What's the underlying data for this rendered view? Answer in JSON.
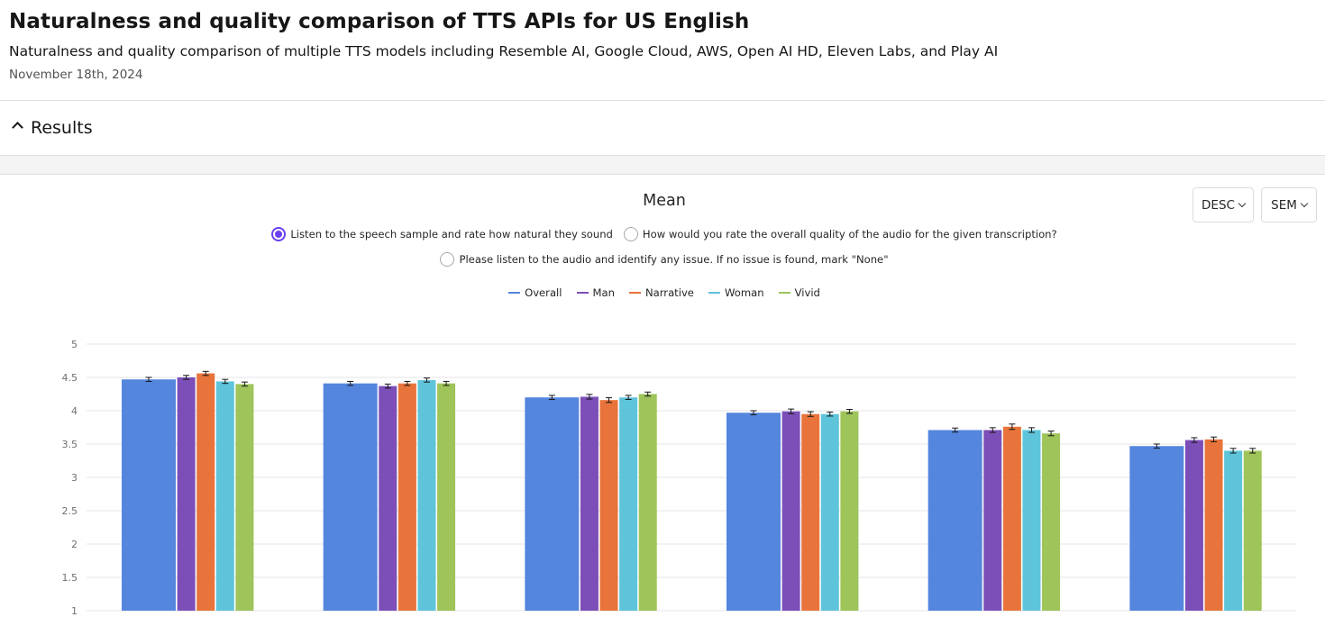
{
  "header": {
    "title": "Naturalness and quality comparison of TTS APIs for US English",
    "subtitle": "Naturalness and quality comparison of multiple TTS models including Resemble AI, Google Cloud, AWS, Open AI HD, Eleven Labs, and Play AI",
    "date": "November 18th, 2024"
  },
  "section": {
    "title": "Results",
    "icon": "chevron-up-icon"
  },
  "chart_header": {
    "title": "Mean"
  },
  "controls": {
    "sort": "DESC",
    "error": "SEM"
  },
  "questions": [
    {
      "label": "Listen to the speech sample and rate how natural they sound",
      "selected": true
    },
    {
      "label": "How would you rate the overall quality of the audio for the given transcription?",
      "selected": false
    },
    {
      "label": "Please listen to the audio and identify any issue. If no issue is found, mark \"None\"",
      "selected": false
    }
  ],
  "colors": {
    "Overall": "#5586de",
    "Man": "#7c4fb8",
    "Narrative": "#e8743b",
    "Woman": "#5ec4da",
    "Vivid": "#9ec45a"
  },
  "chart_data": {
    "type": "bar",
    "title": "Mean",
    "ylim": [
      1,
      5
    ],
    "yticks": [
      "1",
      "1.5",
      "2",
      "2.5",
      "3",
      "3.5",
      "4",
      "4.5",
      "5"
    ],
    "grid": true,
    "legend_position": "top-center",
    "error_bars": "SEM",
    "groups": 6,
    "series": [
      {
        "name": "Overall",
        "values": [
          4.47,
          4.41,
          4.2,
          3.97,
          3.71,
          3.47
        ],
        "errors": [
          0.01,
          0.01,
          0.01,
          0.01,
          0.01,
          0.01
        ]
      },
      {
        "name": "Man",
        "values": [
          4.5,
          4.37,
          4.21,
          3.99,
          3.71,
          3.56
        ],
        "errors": [
          0.01,
          0.01,
          0.015,
          0.015,
          0.015,
          0.015
        ]
      },
      {
        "name": "Narrative",
        "values": [
          4.56,
          4.41,
          4.16,
          3.95,
          3.76,
          3.57
        ],
        "errors": [
          0.01,
          0.01,
          0.015,
          0.015,
          0.02,
          0.015
        ]
      },
      {
        "name": "Woman",
        "values": [
          4.44,
          4.46,
          4.2,
          3.95,
          3.71,
          3.4
        ],
        "errors": [
          0.01,
          0.01,
          0.01,
          0.01,
          0.015,
          0.015
        ]
      },
      {
        "name": "Vivid",
        "values": [
          4.4,
          4.41,
          4.25,
          3.99,
          3.66,
          3.4
        ],
        "errors": [
          0.01,
          0.01,
          0.01,
          0.01,
          0.015,
          0.015
        ]
      }
    ]
  }
}
